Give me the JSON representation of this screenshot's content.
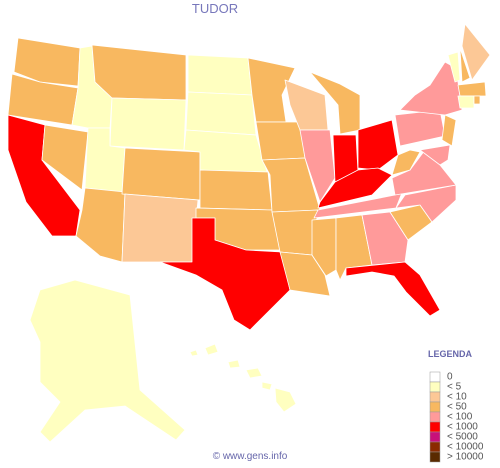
{
  "title": "TUDOR",
  "legend": {
    "title": "LEGENDA",
    "items": [
      {
        "label": "0",
        "color": "#ffffff"
      },
      {
        "label": "< 5",
        "color": "#ffffc0"
      },
      {
        "label": "< 10",
        "color": "#fcc896"
      },
      {
        "label": "< 50",
        "color": "#f8b860"
      },
      {
        "label": "< 100",
        "color": "#ff9a9a"
      },
      {
        "label": "< 1000",
        "color": "#ff0000"
      },
      {
        "label": "< 5000",
        "color": "#c8107a"
      },
      {
        "label": "< 10000",
        "color": "#8a2a00"
      },
      {
        "label": "> 10000",
        "color": "#5a2a00"
      }
    ]
  },
  "footer": "© www.gens.info"
}
